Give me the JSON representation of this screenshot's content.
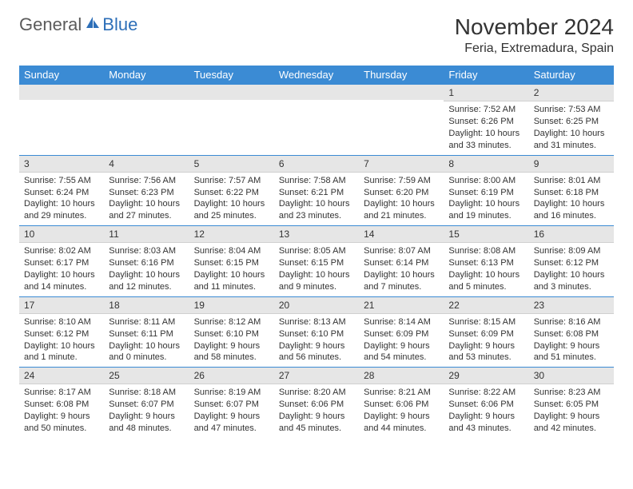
{
  "logo": {
    "text_general": "General",
    "text_blue": "Blue",
    "icon_color": "#2d6fb8"
  },
  "title": "November 2024",
  "location": "Feria, Extremadura, Spain",
  "colors": {
    "header_bg": "#3b8bd4",
    "header_text": "#ffffff",
    "daynum_bg": "#e6e6e6",
    "border": "#3b8bd4",
    "text": "#333333"
  },
  "day_headers": [
    "Sunday",
    "Monday",
    "Tuesday",
    "Wednesday",
    "Thursday",
    "Friday",
    "Saturday"
  ],
  "weeks": [
    [
      null,
      null,
      null,
      null,
      null,
      {
        "n": "1",
        "sunrise": "7:52 AM",
        "sunset": "6:26 PM",
        "daylight": "10 hours and 33 minutes."
      },
      {
        "n": "2",
        "sunrise": "7:53 AM",
        "sunset": "6:25 PM",
        "daylight": "10 hours and 31 minutes."
      }
    ],
    [
      {
        "n": "3",
        "sunrise": "7:55 AM",
        "sunset": "6:24 PM",
        "daylight": "10 hours and 29 minutes."
      },
      {
        "n": "4",
        "sunrise": "7:56 AM",
        "sunset": "6:23 PM",
        "daylight": "10 hours and 27 minutes."
      },
      {
        "n": "5",
        "sunrise": "7:57 AM",
        "sunset": "6:22 PM",
        "daylight": "10 hours and 25 minutes."
      },
      {
        "n": "6",
        "sunrise": "7:58 AM",
        "sunset": "6:21 PM",
        "daylight": "10 hours and 23 minutes."
      },
      {
        "n": "7",
        "sunrise": "7:59 AM",
        "sunset": "6:20 PM",
        "daylight": "10 hours and 21 minutes."
      },
      {
        "n": "8",
        "sunrise": "8:00 AM",
        "sunset": "6:19 PM",
        "daylight": "10 hours and 19 minutes."
      },
      {
        "n": "9",
        "sunrise": "8:01 AM",
        "sunset": "6:18 PM",
        "daylight": "10 hours and 16 minutes."
      }
    ],
    [
      {
        "n": "10",
        "sunrise": "8:02 AM",
        "sunset": "6:17 PM",
        "daylight": "10 hours and 14 minutes."
      },
      {
        "n": "11",
        "sunrise": "8:03 AM",
        "sunset": "6:16 PM",
        "daylight": "10 hours and 12 minutes."
      },
      {
        "n": "12",
        "sunrise": "8:04 AM",
        "sunset": "6:15 PM",
        "daylight": "10 hours and 11 minutes."
      },
      {
        "n": "13",
        "sunrise": "8:05 AM",
        "sunset": "6:15 PM",
        "daylight": "10 hours and 9 minutes."
      },
      {
        "n": "14",
        "sunrise": "8:07 AM",
        "sunset": "6:14 PM",
        "daylight": "10 hours and 7 minutes."
      },
      {
        "n": "15",
        "sunrise": "8:08 AM",
        "sunset": "6:13 PM",
        "daylight": "10 hours and 5 minutes."
      },
      {
        "n": "16",
        "sunrise": "8:09 AM",
        "sunset": "6:12 PM",
        "daylight": "10 hours and 3 minutes."
      }
    ],
    [
      {
        "n": "17",
        "sunrise": "8:10 AM",
        "sunset": "6:12 PM",
        "daylight": "10 hours and 1 minute."
      },
      {
        "n": "18",
        "sunrise": "8:11 AM",
        "sunset": "6:11 PM",
        "daylight": "10 hours and 0 minutes."
      },
      {
        "n": "19",
        "sunrise": "8:12 AM",
        "sunset": "6:10 PM",
        "daylight": "9 hours and 58 minutes."
      },
      {
        "n": "20",
        "sunrise": "8:13 AM",
        "sunset": "6:10 PM",
        "daylight": "9 hours and 56 minutes."
      },
      {
        "n": "21",
        "sunrise": "8:14 AM",
        "sunset": "6:09 PM",
        "daylight": "9 hours and 54 minutes."
      },
      {
        "n": "22",
        "sunrise": "8:15 AM",
        "sunset": "6:09 PM",
        "daylight": "9 hours and 53 minutes."
      },
      {
        "n": "23",
        "sunrise": "8:16 AM",
        "sunset": "6:08 PM",
        "daylight": "9 hours and 51 minutes."
      }
    ],
    [
      {
        "n": "24",
        "sunrise": "8:17 AM",
        "sunset": "6:08 PM",
        "daylight": "9 hours and 50 minutes."
      },
      {
        "n": "25",
        "sunrise": "8:18 AM",
        "sunset": "6:07 PM",
        "daylight": "9 hours and 48 minutes."
      },
      {
        "n": "26",
        "sunrise": "8:19 AM",
        "sunset": "6:07 PM",
        "daylight": "9 hours and 47 minutes."
      },
      {
        "n": "27",
        "sunrise": "8:20 AM",
        "sunset": "6:06 PM",
        "daylight": "9 hours and 45 minutes."
      },
      {
        "n": "28",
        "sunrise": "8:21 AM",
        "sunset": "6:06 PM",
        "daylight": "9 hours and 44 minutes."
      },
      {
        "n": "29",
        "sunrise": "8:22 AM",
        "sunset": "6:06 PM",
        "daylight": "9 hours and 43 minutes."
      },
      {
        "n": "30",
        "sunrise": "8:23 AM",
        "sunset": "6:05 PM",
        "daylight": "9 hours and 42 minutes."
      }
    ]
  ],
  "labels": {
    "sunrise": "Sunrise:",
    "sunset": "Sunset:",
    "daylight": "Daylight:"
  }
}
